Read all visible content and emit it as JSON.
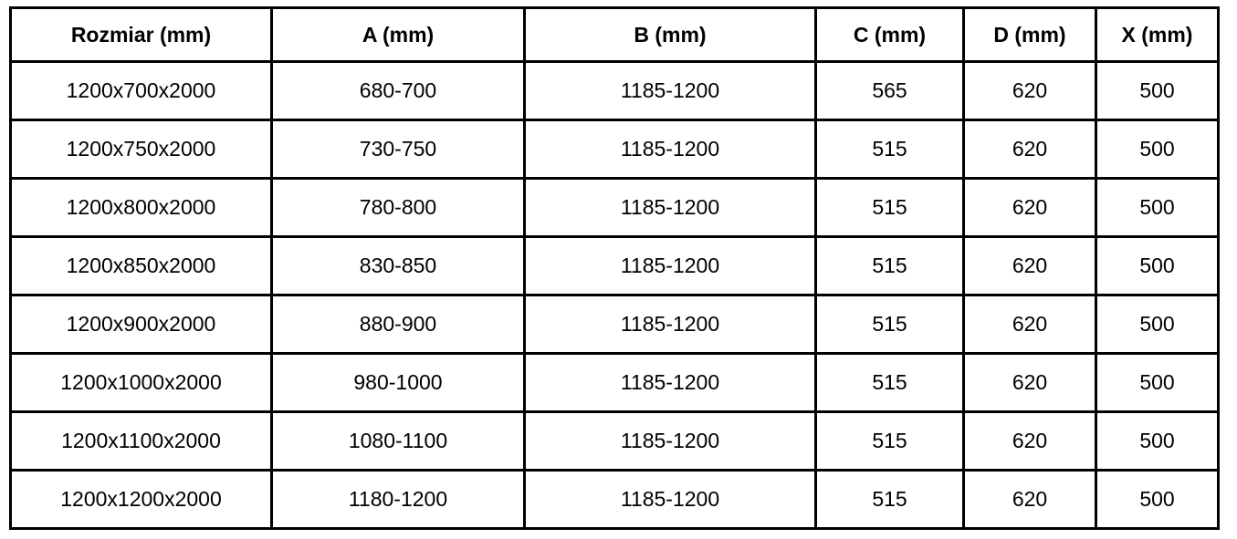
{
  "page": {
    "background": "#ffffff",
    "border_color": "#000000",
    "text_color": "#000000"
  },
  "chart_data": {
    "type": "table",
    "columns": [
      "Rozmiar (mm)",
      "A (mm)",
      "B (mm)",
      "C (mm)",
      "D (mm)",
      "X (mm)"
    ],
    "rows": [
      [
        "1200x700x2000",
        "680-700",
        "1185-1200",
        "565",
        "620",
        "500"
      ],
      [
        "1200x750x2000",
        "730-750",
        "1185-1200",
        "515",
        "620",
        "500"
      ],
      [
        "1200x800x2000",
        "780-800",
        "1185-1200",
        "515",
        "620",
        "500"
      ],
      [
        "1200x850x2000",
        "830-850",
        "1185-1200",
        "515",
        "620",
        "500"
      ],
      [
        "1200x900x2000",
        "880-900",
        "1185-1200",
        "515",
        "620",
        "500"
      ],
      [
        "1200x1000x2000",
        "980-1000",
        "1185-1200",
        "515",
        "620",
        "500"
      ],
      [
        "1200x1100x2000",
        "1080-1100",
        "1185-1200",
        "515",
        "620",
        "500"
      ],
      [
        "1200x1200x2000",
        "1180-1200",
        "1185-1200",
        "515",
        "620",
        "500"
      ]
    ]
  }
}
